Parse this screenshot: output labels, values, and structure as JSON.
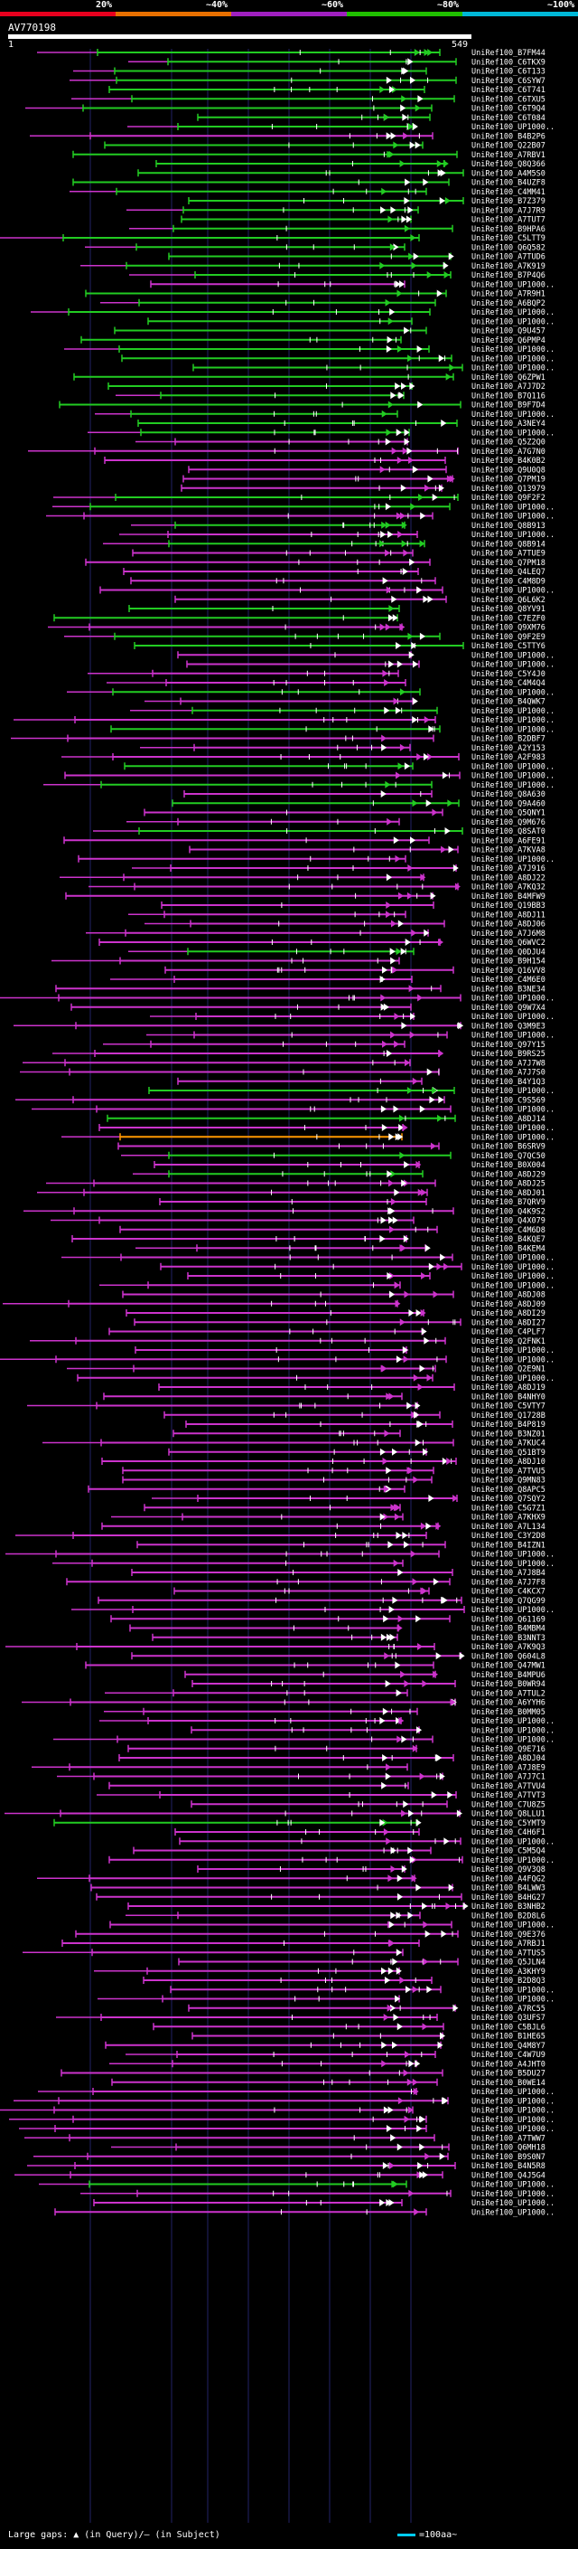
{
  "scale": {
    "ticks": [
      {
        "label": "20%",
        "color": "#e8001e"
      },
      {
        "label": "~40%",
        "color": "#e87000"
      },
      {
        "label": "~60%",
        "color": "#a020c0"
      },
      {
        "label": "~80%",
        "color": "#20c000"
      },
      {
        "label": "~100%",
        "color": "#00b8d8"
      }
    ]
  },
  "query": {
    "id": "AV770198",
    "start": "1",
    "end": "549"
  },
  "colors": {
    "green": "#22cc22",
    "magenta": "#cc33cc",
    "orange": "#ff9900",
    "white": "#ffffff",
    "grid": "#222266",
    "label": "#ffffff"
  },
  "hits": [
    "UniRef100_B7FM44",
    "UniRef100_C6TKX9",
    "UniRef100_C6T133",
    "UniRef100_C6SYW7",
    "UniRef100_C6T741",
    "UniRef100_C6TXU5",
    "UniRef100_C6T9Q4",
    "UniRef100_C6T084",
    "UniRef100_UP1000..",
    "UniRef100_B4B2P6",
    "UniRef100_Q22B07",
    "UniRef100_A7RBV1",
    "UniRef100_Q8Q366",
    "UniRef100_A4M5S0",
    "UniRef100_B4UZF8",
    "UniRef100_C4MM41",
    "UniRef100_B7Z379",
    "UniRef100_A7J7R9",
    "UniRef100_A7TUT7",
    "UniRef100_B9HPA6",
    "UniRef100_C5LTT9",
    "UniRef100_Q6Q582",
    "UniRef100_A7TUD6",
    "UniRef100_A7K919",
    "UniRef100_B7P4Q6",
    "UniRef100_UP1000..",
    "UniRef100_A7R9H1",
    "UniRef100_A6BQP2",
    "UniRef100_UP1000..",
    "UniRef100_UP1000..",
    "UniRef100_Q9U457",
    "UniRef100_Q6PMP4",
    "UniRef100_UP1000..",
    "UniRef100_UP1000..",
    "UniRef100_UP1000..",
    "UniRef100_Q6ZPW1",
    "UniRef100_A7J7D2",
    "UniRef100_B7Q116",
    "UniRef100_B9F7D4",
    "UniRef100_UP1000..",
    "UniRef100_A3NEY4",
    "UniRef100_UP1000..",
    "UniRef100_Q5Z2Q0",
    "UniRef100_A7G7N0",
    "UniRef100_B4K0B2",
    "UniRef100_Q9U0Q8",
    "UniRef100_Q7PM19",
    "UniRef100_Q13979",
    "UniRef100_Q9F2F2",
    "UniRef100_UP1000..",
    "UniRef100_UP1000..",
    "UniRef100_Q8B913",
    "UniRef100_UP1000..",
    "UniRef100_Q8B914",
    "UniRef100_A7TUE9",
    "UniRef100_Q7PM18",
    "UniRef100_Q4LEQ7",
    "UniRef100_C4M8D9",
    "UniRef100_UP1000..",
    "UniRef100_Q6L6K2",
    "UniRef100_Q8YV91",
    "UniRef100_C7EZF0",
    "UniRef100_Q9XM76",
    "UniRef100_Q9F2E9",
    "UniRef100_C5TTY6",
    "UniRef100_UP1000..",
    "UniRef100_UP1000..",
    "UniRef100_C5Y4J0",
    "UniRef100_C4M4Q4",
    "UniRef100_UP1000..",
    "UniRef100_B4QWK7",
    "UniRef100_UP1000..",
    "UniRef100_UP1000..",
    "UniRef100_UP1000..",
    "UniRef100_B2DBF7",
    "UniRef100_A2Y153",
    "UniRef100_A2F983",
    "UniRef100_UP1000..",
    "UniRef100_UP1000..",
    "UniRef100_UP1000..",
    "UniRef100_Q8A630",
    "UniRef100_Q9A460",
    "UniRef100_Q5QNY1",
    "UniRef100_Q9M676",
    "UniRef100_Q8SAT0",
    "UniRef100_A6FE91",
    "UniRef100_A7KVA8",
    "UniRef100_UP1000..",
    "UniRef100_A7J916",
    "UniRef100_A8DJ22",
    "UniRef100_A7KQ32",
    "UniRef100_B4MFW9",
    "UniRef100_Q19BB3",
    "UniRef100_A8DJ11",
    "UniRef100_A8DJ06",
    "UniRef100_A7J6M8",
    "UniRef100_Q6WVC2",
    "UniRef100_Q0DJU4",
    "UniRef100_B9H154",
    "UniRef100_Q16VV8",
    "UniRef100_C4M6E0",
    "UniRef100_B3NE34",
    "UniRef100_UP1000..",
    "UniRef100_Q9W7X4",
    "UniRef100_UP1000..",
    "UniRef100_Q3M9E3",
    "UniRef100_UP1000..",
    "UniRef100_Q97Y15",
    "UniRef100_B9RS25",
    "UniRef100_A7J7W8",
    "UniRef100_A7J7S0",
    "UniRef100_B4Y1Q3",
    "UniRef100_UP1000..",
    "UniRef100_C9S569",
    "UniRef100_UP1000..",
    "UniRef100_A8DJ14",
    "UniRef100_UP1000..",
    "UniRef100_UP1000..",
    "UniRef100_B6SRV9",
    "UniRef100_Q7QC50",
    "UniRef100_B0X004",
    "UniRef100_A8DJ29",
    "UniRef100_A8DJ25",
    "UniRef100_A8DJ01",
    "UniRef100_B7QRV9",
    "UniRef100_Q4K9S2",
    "UniRef100_Q4X079",
    "UniRef100_C4M6D8",
    "UniRef100_B4KQE7",
    "UniRef100_B4KEM4",
    "UniRef100_UP1000..",
    "UniRef100_UP1000..",
    "UniRef100_UP1000..",
    "UniRef100_UP1000..",
    "UniRef100_A8DJ08",
    "UniRef100_A8DJ09",
    "UniRef100_A8DI29",
    "UniRef100_A8DI27",
    "UniRef100_C4PLF7",
    "UniRef100_Q2FNK1",
    "UniRef100_UP1000..",
    "UniRef100_UP1000..",
    "UniRef100_Q2E9N1",
    "UniRef100_UP1000..",
    "UniRef100_A8DJ19",
    "UniRef100_B4NHY0",
    "UniRef100_C5VTY7",
    "UniRef100_Q1728B",
    "UniRef100_B4P819",
    "UniRef100_B3NZ01",
    "UniRef100_A7KUC4",
    "UniRef100_Q51BT9",
    "UniRef100_A8DJ10",
    "UniRef100_A7TVU5",
    "UniRef100_Q9MN83",
    "UniRef100_Q8APC5",
    "UniRef100_Q7SQY2",
    "UniRef100_C5G7Z1",
    "UniRef100_A7KHX9",
    "UniRef100_A7L134",
    "UniRef100_C3Y2D8",
    "UniRef100_B4IZN1",
    "UniRef100_UP1000..",
    "UniRef100_UP1000..",
    "UniRef100_A7J8B4",
    "UniRef100_A7J7F8",
    "UniRef100_C4KCX7",
    "UniRef100_Q7QG99",
    "UniRef100_UP1000..",
    "UniRef100_Q61169",
    "UniRef100_B4MBM4",
    "UniRef100_B3NNT3",
    "UniRef100_A7K9Q3",
    "UniRef100_Q604L8",
    "UniRef100_Q47MW1",
    "UniRef100_B4MPU6",
    "UniRef100_B0WR94",
    "UniRef100_A7TUL2",
    "UniRef100_A6YYH6",
    "UniRef100_B0MM05",
    "UniRef100_UP1000..",
    "UniRef100_UP1000..",
    "UniRef100_UP1000..",
    "UniRef100_Q9E716",
    "UniRef100_A8DJ04",
    "UniRef100_A7J8E9",
    "UniRef100_A7J7C1",
    "UniRef100_A7TVU4",
    "UniRef100_A7TVT3",
    "UniRef100_C7U8Z5",
    "UniRef100_Q8LLU1",
    "UniRef100_C5YMT9",
    "UniRef100_C4H6F1",
    "UniRef100_UP1000..",
    "UniRef100_C5M5Q4",
    "UniRef100_UP1000..",
    "UniRef100_Q9V3Q8",
    "UniRef100_A4FQG2",
    "UniRef100_B4LWW3",
    "UniRef100_B4HG27",
    "UniRef100_B3NHB2",
    "UniRef100_B2D8L6",
    "UniRef100_UP1000..",
    "UniRef100_Q9E376",
    "UniRef100_A7RBJ1",
    "UniRef100_A7TUS5",
    "UniRef100_Q5JLN4",
    "UniRef100_A3KHY9",
    "UniRef100_B2D8Q3",
    "UniRef100_UP1000..",
    "UniRef100_UP1000..",
    "UniRef100_A7RC55",
    "UniRef100_Q3UFS7",
    "UniRef100_C5BJL6",
    "UniRef100_B1HE65",
    "UniRef100_Q4M8Y7",
    "UniRef100_C4W7U9",
    "UniRef100_A4JHT0",
    "UniRef100_B5DU27",
    "UniRef100_B0WE14",
    "UniRef100_UP1000..",
    "UniRef100_UP1000..",
    "UniRef100_UP1000..",
    "UniRef100_UP1000..",
    "UniRef100_UP1000..",
    "UniRef100_A7TWW7",
    "UniRef100_Q6MH18",
    "UniRef100_B9S0N7",
    "UniRef100_B4N5R8",
    "UniRef100_Q4J5G4",
    "UniRef100_UP1000..",
    "UniRef100_UP1000..",
    "UniRef100_UP1000..",
    "UniRef100_UP1000.."
  ],
  "footer": {
    "text": "Large gaps: ▲ (in Query)/— (in Subject)"
  },
  "legend": {
    "text": "=100aa~"
  }
}
